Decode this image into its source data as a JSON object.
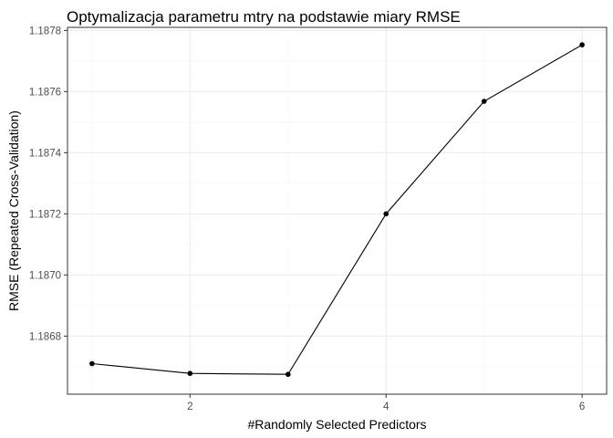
{
  "chart_data": {
    "type": "line",
    "title": "Optymalizacja parametru mtry na podstawie miary RMSE",
    "xlabel": "#Randomly Selected Predictors",
    "ylabel": "RMSE (Repeated Cross-Validation)",
    "x": [
      1,
      2,
      3,
      4,
      5,
      6
    ],
    "series": [
      {
        "values": [
          1.18671,
          1.186678,
          1.186675,
          1.1872,
          1.187568,
          1.187753
        ]
      }
    ],
    "xlim": [
      0.75,
      6.25
    ],
    "ylim": [
      1.18661,
      1.18781
    ],
    "x_ticks": [
      2,
      4,
      6
    ],
    "x_tick_labels": [
      "2",
      "4",
      "6"
    ],
    "y_ticks": [
      1.1868,
      1.187,
      1.1872,
      1.1874,
      1.1876,
      1.1878
    ],
    "y_tick_labels": [
      "1.1868",
      "1.1870",
      "1.1872",
      "1.1874",
      "1.1876",
      "1.1878"
    ],
    "grid": true,
    "legend": "none",
    "colors": {
      "line": "#000000",
      "point": "#000000",
      "grid_major": "#ebebeb",
      "grid_minor": "#f5f5f5",
      "panel_border": "#333333"
    }
  }
}
